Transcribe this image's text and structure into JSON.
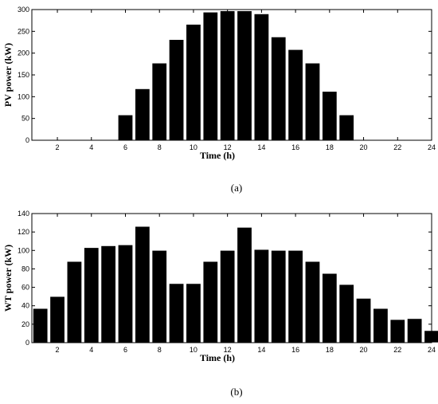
{
  "chart_data": [
    {
      "type": "bar",
      "panel_label": "(a)",
      "xlabel": "Time (h)",
      "ylabel": "PV power (kW)",
      "categories": [
        1,
        2,
        3,
        4,
        5,
        6,
        7,
        8,
        9,
        10,
        11,
        12,
        13,
        14,
        15,
        16,
        17,
        18,
        19,
        20,
        21,
        22,
        23,
        24
      ],
      "values": [
        0,
        0,
        0,
        0,
        0,
        58,
        118,
        177,
        231,
        266,
        294,
        297,
        297,
        290,
        237,
        208,
        177,
        112,
        58,
        0,
        0,
        0,
        0,
        0
      ],
      "xlim": [
        0.5,
        24
      ],
      "ylim": [
        0,
        300
      ],
      "xticks": [
        2,
        4,
        6,
        8,
        10,
        12,
        14,
        16,
        18,
        20,
        22,
        24
      ],
      "yticks": [
        0,
        50,
        100,
        150,
        200,
        250,
        300
      ],
      "bar_color": "#000000",
      "grid": false
    },
    {
      "type": "bar",
      "panel_label": "(b)",
      "xlabel": "Time (h)",
      "ylabel": "WT power (kW)",
      "categories": [
        1,
        2,
        3,
        4,
        5,
        6,
        7,
        8,
        9,
        10,
        11,
        12,
        13,
        14,
        15,
        16,
        17,
        18,
        19,
        20,
        21,
        22,
        23,
        24
      ],
      "values": [
        37,
        50,
        88,
        103,
        105,
        106,
        126,
        100,
        64,
        64,
        88,
        100,
        125,
        101,
        100,
        100,
        88,
        75,
        63,
        48,
        37,
        25,
        26,
        13
      ],
      "xlim": [
        0.5,
        24
      ],
      "ylim": [
        0,
        140
      ],
      "xticks": [
        2,
        4,
        6,
        8,
        10,
        12,
        14,
        16,
        18,
        20,
        22,
        24
      ],
      "yticks": [
        0,
        20,
        40,
        60,
        80,
        100,
        120,
        140
      ],
      "bar_color": "#000000",
      "grid": false
    }
  ]
}
